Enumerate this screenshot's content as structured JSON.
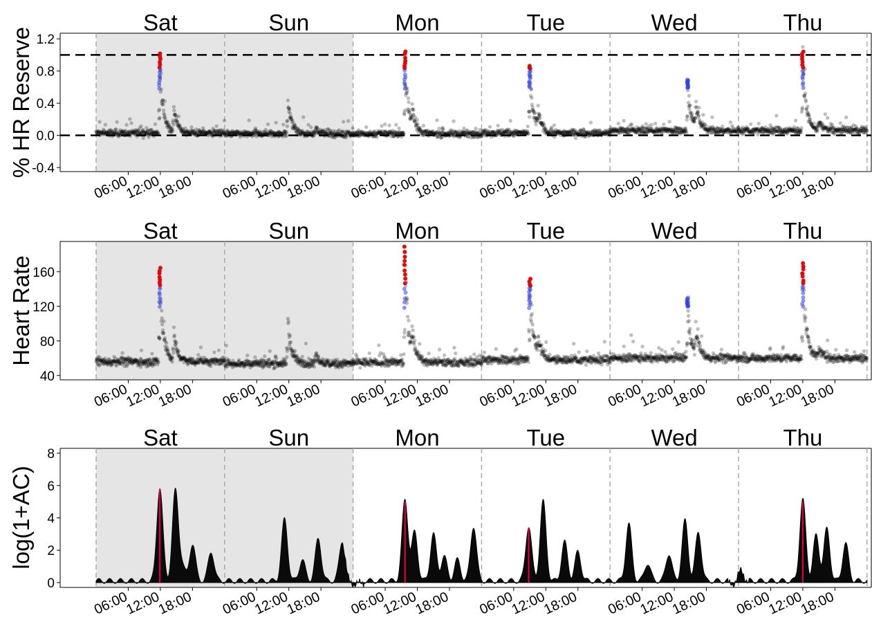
{
  "days": [
    "Sat",
    "Sun",
    "Mon",
    "Tue",
    "Wed",
    "Thu"
  ],
  "time_ticks": [
    "06:00",
    "12:00",
    "18:00"
  ],
  "weekend_days": [
    "Sat",
    "Sun"
  ],
  "colors": {
    "weekend_shade": "#e5e5e5",
    "points": "#000000",
    "high_points": "#e00000",
    "mid_points": "#3340e0",
    "vigorous_line": "#e0003a",
    "moderate_line": "#3030a0",
    "reference_line": "#000000",
    "day_divider": "#aaaaaa"
  },
  "chart_data": [
    {
      "type": "scatter",
      "ylabel": "% HR Reserve",
      "ylim": [
        -0.45,
        1.27
      ],
      "yticks": [
        -0.4,
        0.0,
        0.4,
        0.8,
        1.2
      ],
      "yticklabels": [
        "-0.4",
        "0.0",
        "0.4",
        "0.8",
        "1.2"
      ],
      "reference_lines": [
        0,
        1
      ],
      "baseline_by_day": [
        0.03,
        0.02,
        0.02,
        0.03,
        0.06,
        0.06
      ],
      "peaks": [
        {
          "day": "Sat",
          "hour": 11.9,
          "value": 1.02
        },
        {
          "day": "Sat",
          "hour": 14.5,
          "value": 0.4
        },
        {
          "day": "Sun",
          "hour": 11.8,
          "value": 0.55
        },
        {
          "day": "Sun",
          "hour": 17.0,
          "value": 0.12
        },
        {
          "day": "Mon",
          "hour": 9.7,
          "value": 1.05
        },
        {
          "day": "Mon",
          "hour": 11.0,
          "value": 0.3
        },
        {
          "day": "Tue",
          "hour": 9.0,
          "value": 0.88
        },
        {
          "day": "Tue",
          "hour": 10.5,
          "value": 0.3
        },
        {
          "day": "Wed",
          "hour": 14.5,
          "value": 0.7
        },
        {
          "day": "Wed",
          "hour": 16.0,
          "value": 0.4
        },
        {
          "day": "Thu",
          "hour": 12.0,
          "value": 1.06
        },
        {
          "day": "Thu",
          "hour": 15.0,
          "value": 0.2
        }
      ]
    },
    {
      "type": "scatter",
      "ylabel": "Heart Rate",
      "ylim": [
        35,
        195
      ],
      "yticks": [
        40,
        80,
        120,
        160
      ],
      "yticklabels": [
        "40",
        "80",
        "120",
        "160"
      ],
      "baseline_by_day": [
        56,
        54,
        55,
        58,
        60,
        60
      ],
      "peaks": [
        {
          "day": "Sat",
          "hour": 11.9,
          "value": 166
        },
        {
          "day": "Sat",
          "hour": 14.5,
          "value": 95
        },
        {
          "day": "Sun",
          "hour": 11.8,
          "value": 112
        },
        {
          "day": "Sun",
          "hour": 17.0,
          "value": 70
        },
        {
          "day": "Mon",
          "hour": 9.7,
          "value": 190
        },
        {
          "day": "Mon",
          "hour": 11.0,
          "value": 85
        },
        {
          "day": "Tue",
          "hour": 9.0,
          "value": 152
        },
        {
          "day": "Tue",
          "hour": 10.5,
          "value": 85
        },
        {
          "day": "Wed",
          "hour": 14.5,
          "value": 130
        },
        {
          "day": "Wed",
          "hour": 16.0,
          "value": 95
        },
        {
          "day": "Thu",
          "hour": 12.0,
          "value": 171
        },
        {
          "day": "Thu",
          "hour": 15.0,
          "value": 75
        }
      ]
    },
    {
      "type": "area",
      "ylabel": "log(1+AC)",
      "ylim": [
        -0.3,
        8.3
      ],
      "yticks": [
        0,
        2,
        4,
        6,
        8
      ],
      "yticklabels": [
        "0",
        "2",
        "4",
        "6",
        "8"
      ],
      "peaks": [
        {
          "day": "Sat",
          "hour": 11.9,
          "value": 5.8
        },
        {
          "day": "Sat",
          "hour": 14.8,
          "value": 5.5
        },
        {
          "day": "Sat",
          "hour": 16.0,
          "value": 1.0
        },
        {
          "day": "Sat",
          "hour": 18.0,
          "value": 2.3
        },
        {
          "day": "Sat",
          "hour": 21.5,
          "value": 1.8
        },
        {
          "day": "Sun",
          "hour": 11.2,
          "value": 3.8
        },
        {
          "day": "Sun",
          "hour": 14.5,
          "value": 1.3
        },
        {
          "day": "Sun",
          "hour": 17.5,
          "value": 2.6
        },
        {
          "day": "Sun",
          "hour": 22.0,
          "value": 2.5
        },
        {
          "day": "Mon",
          "hour": 9.7,
          "value": 5.0
        },
        {
          "day": "Mon",
          "hour": 11.5,
          "value": 3.0
        },
        {
          "day": "Mon",
          "hour": 15.0,
          "value": 2.9
        },
        {
          "day": "Mon",
          "hour": 17.0,
          "value": 1.5
        },
        {
          "day": "Mon",
          "hour": 19.5,
          "value": 1.3
        },
        {
          "day": "Mon",
          "hour": 22.5,
          "value": 3.4
        },
        {
          "day": "Tue",
          "hour": 8.8,
          "value": 3.4
        },
        {
          "day": "Tue",
          "hour": 11.5,
          "value": 4.9
        },
        {
          "day": "Tue",
          "hour": 15.5,
          "value": 2.4
        },
        {
          "day": "Tue",
          "hour": 18.0,
          "value": 1.8
        },
        {
          "day": "Wed",
          "hour": 3.5,
          "value": 3.5
        },
        {
          "day": "Wed",
          "hour": 7.0,
          "value": 1.1
        },
        {
          "day": "Wed",
          "hour": 11.0,
          "value": 1.7
        },
        {
          "day": "Wed",
          "hour": 14.0,
          "value": 3.7
        },
        {
          "day": "Wed",
          "hour": 16.5,
          "value": 3.0
        },
        {
          "day": "Thu",
          "hour": 0.5,
          "value": 0.8
        },
        {
          "day": "Thu",
          "hour": 12.0,
          "value": 5.0
        },
        {
          "day": "Thu",
          "hour": 14.5,
          "value": 2.8
        },
        {
          "day": "Thu",
          "hour": 16.5,
          "value": 3.2
        },
        {
          "day": "Thu",
          "hour": 20.0,
          "value": 2.3
        }
      ]
    }
  ]
}
